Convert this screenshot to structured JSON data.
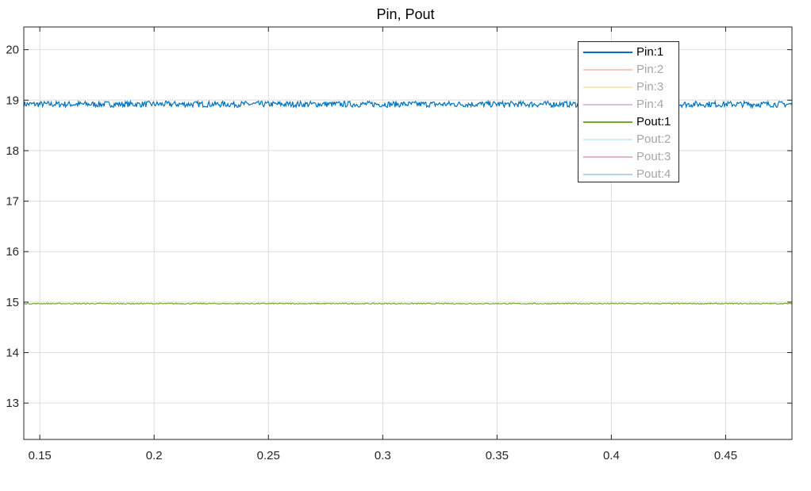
{
  "chart_data": {
    "type": "line",
    "title": "Pin, Pout",
    "xlabel": "",
    "ylabel": "",
    "xlim": [
      0.143,
      0.479
    ],
    "ylim": [
      12.28,
      20.45
    ],
    "xticks": [
      0.15,
      0.2,
      0.25,
      0.3,
      0.35,
      0.4,
      0.45
    ],
    "xtick_labels": [
      "0.15",
      "0.2",
      "0.25",
      "0.3",
      "0.35",
      "0.4",
      "0.45"
    ],
    "yticks": [
      13,
      14,
      15,
      16,
      17,
      18,
      19,
      20
    ],
    "ytick_labels": [
      "13",
      "14",
      "15",
      "16",
      "17",
      "18",
      "19",
      "20"
    ],
    "grid": true,
    "legend_position": "top-right",
    "series": [
      {
        "name": "Pin:1",
        "color": "#0072BD",
        "visible": true,
        "x": [
          0.143,
          0.479
        ],
        "y": [
          18.92,
          18.92
        ],
        "noise": 0.06
      },
      {
        "name": "Pin:2",
        "color": "#D95319",
        "visible": false,
        "x": [
          0.143,
          0.479
        ],
        "y": [
          18.92,
          18.92
        ]
      },
      {
        "name": "Pin:3",
        "color": "#EDB120",
        "visible": false,
        "x": [
          0.143,
          0.479
        ],
        "y": [
          18.92,
          18.92
        ]
      },
      {
        "name": "Pin:4",
        "color": "#7E2F8E",
        "visible": false,
        "x": [
          0.143,
          0.479
        ],
        "y": [
          18.92,
          18.92
        ]
      },
      {
        "name": "Pout:1",
        "color": "#77AC30",
        "visible": true,
        "x": [
          0.143,
          0.479
        ],
        "y": [
          14.97,
          14.97
        ],
        "noise": 0.01
      },
      {
        "name": "Pout:2",
        "color": "#4DBEEE",
        "visible": false,
        "x": [
          0.143,
          0.479
        ],
        "y": [
          14.97,
          14.97
        ]
      },
      {
        "name": "Pout:3",
        "color": "#A2142F",
        "visible": false,
        "x": [
          0.143,
          0.479
        ],
        "y": [
          14.97,
          14.97
        ]
      },
      {
        "name": "Pout:4",
        "color": "#0072BD",
        "visible": false,
        "x": [
          0.143,
          0.479
        ],
        "y": [
          18.95,
          18.95
        ]
      }
    ]
  }
}
